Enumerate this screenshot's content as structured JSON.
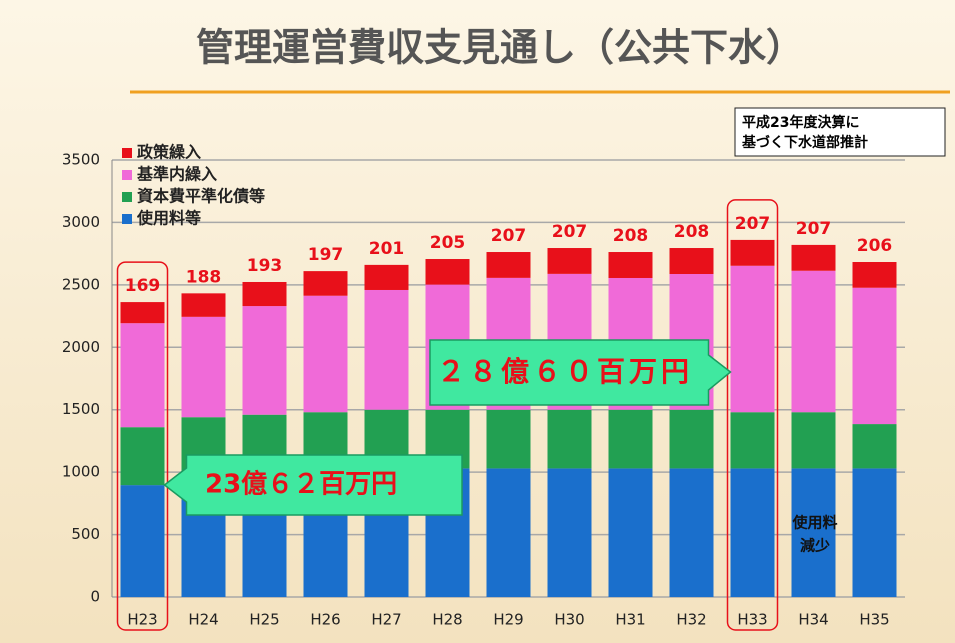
{
  "chart_data": {
    "type": "stacked_bar",
    "title": "管理運営費収支見通し（公共下水）",
    "note": [
      "平成23年度決算に",
      "基づく下水道部推計"
    ],
    "categories": [
      "H23",
      "H24",
      "H25",
      "H26",
      "H27",
      "H28",
      "H29",
      "H30",
      "H31",
      "H32",
      "H33",
      "H34",
      "H35"
    ],
    "series": [
      {
        "name": "使用料等",
        "color": "#1a6fcc",
        "values": [
          896,
          900,
          900,
          900,
          900,
          1030,
          1030,
          1030,
          1030,
          1030,
          1030,
          1030,
          1030
        ]
      },
      {
        "name": "資本費平準化債等",
        "color": "#22a052",
        "values": [
          464,
          540,
          560,
          580,
          600,
          470,
          470,
          470,
          470,
          470,
          450,
          450,
          355
        ]
      },
      {
        "name": "基準内繰入",
        "color": "#f06ad8",
        "values": [
          833,
          804,
          870,
          933,
          959,
          1002,
          1056,
          1088,
          1055,
          1087,
          1173,
          1133,
          1092
        ]
      },
      {
        "name": "政策繰入",
        "color": "#e8101a",
        "values": [
          169,
          188,
          193,
          197,
          201,
          205,
          207,
          207,
          208,
          208,
          207,
          207,
          206
        ]
      }
    ],
    "ylim": [
      0,
      3500
    ],
    "yticks": [
      0,
      500,
      1000,
      1500,
      2000,
      2500,
      3000,
      3500
    ],
    "grid": true,
    "legend": "upper-left",
    "annotations": [
      {
        "text": "23億６２百万円",
        "category": 0
      },
      {
        "text": "２８億６０百万円",
        "category": 10
      },
      {
        "text": [
          "使用料",
          "減少"
        ]
      }
    ]
  }
}
